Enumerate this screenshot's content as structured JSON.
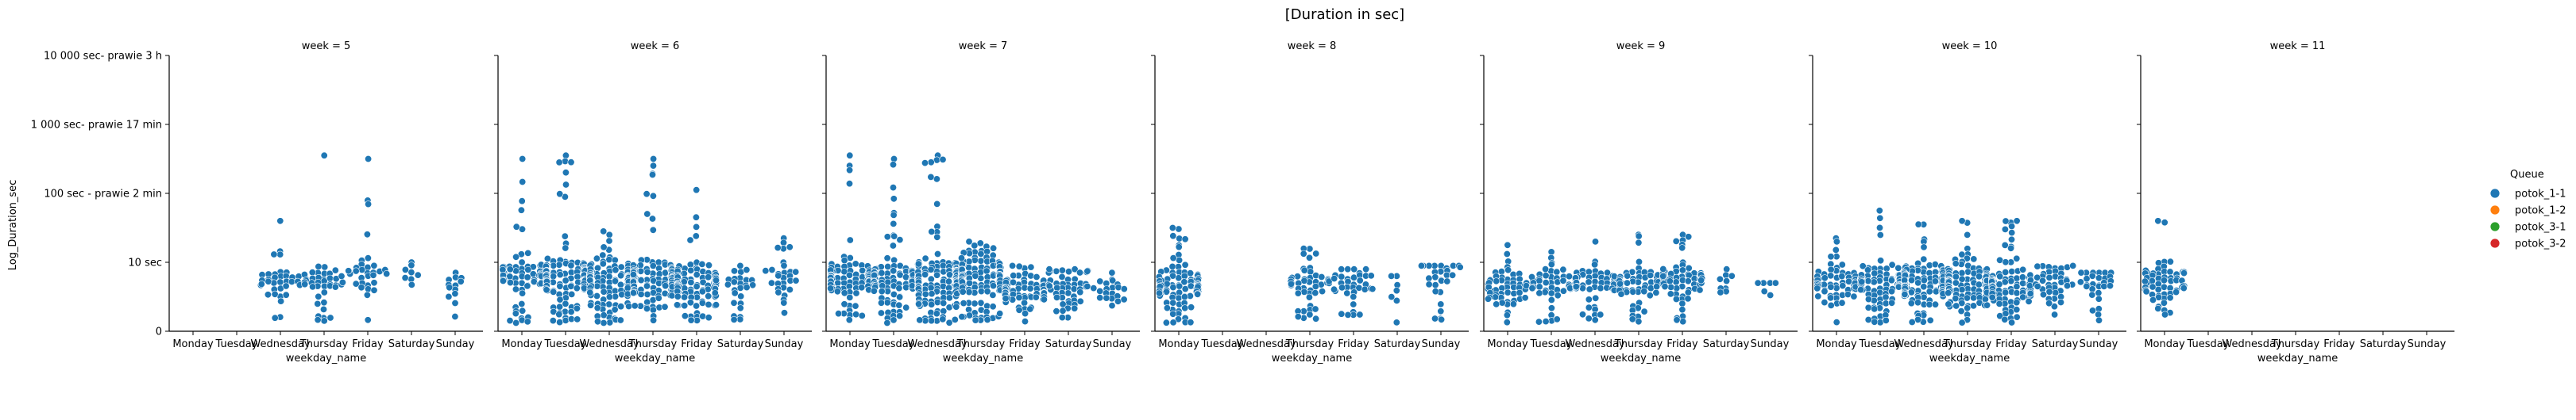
{
  "chart_data": {
    "type": "scatter",
    "subtype": "swarm (faceted by week, log y axis)",
    "title": "[Duration in sec]",
    "xlabel": "weekday_name",
    "ylabel": "Log_Duration_sec",
    "y_scale": "log",
    "ylim": [
      0,
      4
    ],
    "yticks": [
      {
        "value": 0,
        "label": "0"
      },
      {
        "value": 1,
        "label": "10 sec"
      },
      {
        "value": 2,
        "label": "100 sec - prawie 2 min"
      },
      {
        "value": 3,
        "label": "1 000 sec- prawie 17 min"
      },
      {
        "value": 4,
        "label": "10 000 sec- prawie 3 h"
      }
    ],
    "categories": [
      "Monday",
      "Tuesday",
      "Wednesday",
      "Thursday",
      "Friday",
      "Saturday",
      "Sunday"
    ],
    "legend": {
      "title": "Queue",
      "placement": "right",
      "entries": [
        {
          "name": "potok_1-1",
          "color": "#1f77b4"
        },
        {
          "name": "potok_1-2",
          "color": "#ff7f0e"
        },
        {
          "name": "potok_3-1",
          "color": "#2ca02c"
        },
        {
          "name": "potok_3-2",
          "color": "#d62728"
        }
      ]
    },
    "facets": [
      {
        "title": "week = 5",
        "groups": [
          {
            "day": "Wednesday",
            "count": 34,
            "median": 0.75,
            "max": 1.6
          },
          {
            "day": "Thursday",
            "count": 40,
            "median": 0.75,
            "max": 2.55
          },
          {
            "day": "Friday",
            "count": 30,
            "median": 0.8,
            "max": 2.5
          },
          {
            "day": "Saturday",
            "count": 7,
            "median": 0.8,
            "max": 1.0
          },
          {
            "day": "Sunday",
            "count": 12,
            "median": 0.65,
            "max": 0.85
          }
        ]
      },
      {
        "title": "week = 6",
        "groups": [
          {
            "day": "Monday",
            "count": 70,
            "median": 0.8,
            "max": 2.5
          },
          {
            "day": "Tuesday",
            "count": 150,
            "median": 0.8,
            "max": 2.55
          },
          {
            "day": "Wednesday",
            "count": 180,
            "median": 0.75,
            "max": 1.45
          },
          {
            "day": "Thursday",
            "count": 150,
            "median": 0.75,
            "max": 2.5
          },
          {
            "day": "Friday",
            "count": 110,
            "median": 0.7,
            "max": 2.05
          },
          {
            "day": "Saturday",
            "count": 25,
            "median": 0.65,
            "max": 0.95
          },
          {
            "day": "Sunday",
            "count": 28,
            "median": 0.7,
            "max": 1.35
          }
        ]
      },
      {
        "title": "week = 7",
        "groups": [
          {
            "day": "Monday",
            "count": 100,
            "median": 0.75,
            "max": 2.55
          },
          {
            "day": "Tuesday",
            "count": 120,
            "median": 0.75,
            "max": 2.5
          },
          {
            "day": "Wednesday",
            "count": 190,
            "median": 0.75,
            "max": 2.55
          },
          {
            "day": "Thursday",
            "count": 160,
            "median": 0.8,
            "max": 1.3
          },
          {
            "day": "Friday",
            "count": 80,
            "median": 0.6,
            "max": 0.95
          },
          {
            "day": "Saturday",
            "count": 50,
            "median": 0.65,
            "max": 0.9
          },
          {
            "day": "Sunday",
            "count": 20,
            "median": 0.6,
            "max": 0.85
          }
        ]
      },
      {
        "title": "week = 8",
        "groups": [
          {
            "day": "Monday",
            "count": 110,
            "median": 0.65,
            "max": 1.5
          },
          {
            "day": "Thursday",
            "count": 50,
            "median": 0.7,
            "max": 1.2
          },
          {
            "day": "Friday",
            "count": 35,
            "median": 0.7,
            "max": 0.9
          },
          {
            "day": "Saturday",
            "count": 6,
            "median": 0.6,
            "max": 0.8
          },
          {
            "day": "Sunday",
            "count": 28,
            "median": 0.8,
            "max": 0.95
          }
        ]
      },
      {
        "title": "week = 9",
        "groups": [
          {
            "day": "Monday",
            "count": 55,
            "median": 0.65,
            "max": 1.25
          },
          {
            "day": "Tuesday",
            "count": 45,
            "median": 0.7,
            "max": 1.15
          },
          {
            "day": "Wednesday",
            "count": 55,
            "median": 0.7,
            "max": 1.3
          },
          {
            "day": "Thursday",
            "count": 60,
            "median": 0.7,
            "max": 1.4
          },
          {
            "day": "Friday",
            "count": 70,
            "median": 0.75,
            "max": 1.4
          },
          {
            "day": "Saturday",
            "count": 8,
            "median": 0.75,
            "max": 0.9
          },
          {
            "day": "Sunday",
            "count": 5,
            "median": 0.65,
            "max": 0.7
          }
        ]
      },
      {
        "title": "week = 10",
        "groups": [
          {
            "day": "Monday",
            "count": 70,
            "median": 0.7,
            "max": 1.35
          },
          {
            "day": "Tuesday",
            "count": 90,
            "median": 0.7,
            "max": 1.75
          },
          {
            "day": "Wednesday",
            "count": 120,
            "median": 0.7,
            "max": 1.55
          },
          {
            "day": "Thursday",
            "count": 140,
            "median": 0.7,
            "max": 1.6
          },
          {
            "day": "Friday",
            "count": 120,
            "median": 0.65,
            "max": 1.6
          },
          {
            "day": "Saturday",
            "count": 40,
            "median": 0.7,
            "max": 0.95
          },
          {
            "day": "Sunday",
            "count": 28,
            "median": 0.65,
            "max": 0.85
          }
        ]
      },
      {
        "title": "week = 11",
        "groups": [
          {
            "day": "Monday",
            "count": 60,
            "median": 0.7,
            "max": 1.6
          }
        ]
      }
    ]
  }
}
